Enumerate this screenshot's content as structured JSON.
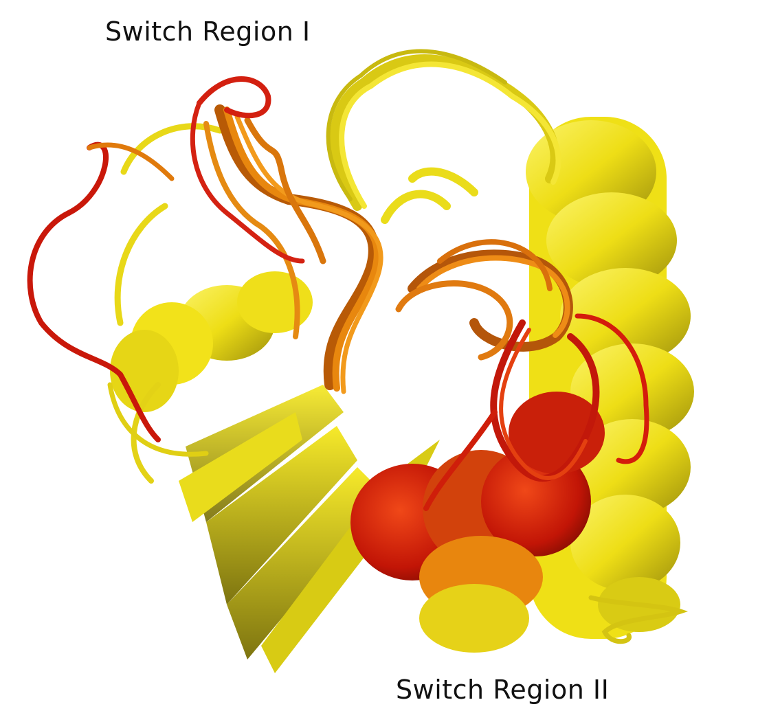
{
  "labels": {
    "region1": "Switch Region I",
    "region2": "Switch Region II"
  },
  "colors": {
    "background": "#ffffff",
    "stable": "#f2e21a",
    "stable_dark": "#a89a10",
    "intermediate": "#e8870e",
    "flexible": "#d81c0a",
    "text": "#111111"
  },
  "image": {
    "subject": "superposed-protein-ribbon-ensemble",
    "coloring": "flexibility-gradient-yellow-orange-red"
  }
}
